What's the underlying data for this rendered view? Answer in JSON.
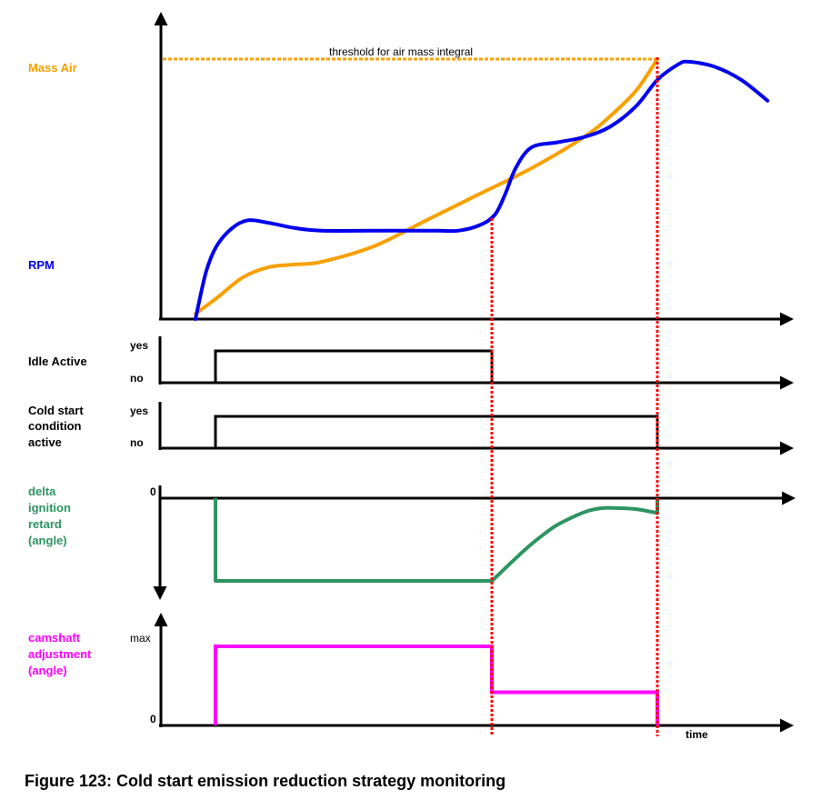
{
  "colors": {
    "mass_air": "#f7a000",
    "rpm": "#0000ee",
    "ignition": "#2e9462",
    "camshaft": "#ff00ff",
    "marker": "#ff0000",
    "axis": "#000000",
    "zero_label": "#0000ee"
  },
  "caption": "Figure 123: Cold start emission reduction strategy monitoring",
  "chart_data": [
    {
      "type": "line",
      "panel": "top",
      "title": "",
      "xlabel": "",
      "ylabel": "",
      "grid": false,
      "x_range": [
        0,
        100
      ],
      "y_range": [
        0,
        100
      ],
      "series": [
        {
          "name": "Mass Air",
          "label": "Mass Air",
          "x": [
            6,
            10,
            15,
            20,
            25,
            30,
            40,
            50,
            60,
            70,
            80,
            85,
            90,
            94
          ],
          "values": [
            2,
            8,
            16,
            20,
            21,
            22,
            28,
            38,
            48,
            58,
            70,
            78,
            88,
            100
          ]
        },
        {
          "name": "RPM",
          "label": "RPM",
          "x": [
            6,
            8,
            10,
            13,
            16,
            20,
            25,
            30,
            40,
            52,
            56,
            60,
            63,
            65,
            67,
            70,
            75,
            80,
            85,
            90,
            94,
            98,
            100,
            105,
            110,
            115
          ],
          "values": [
            0,
            18,
            28,
            35,
            38,
            37,
            35,
            34,
            34,
            34,
            34,
            36,
            40,
            48,
            58,
            66,
            68,
            70,
            74,
            82,
            92,
            98,
            99,
            97,
            92,
            84
          ]
        }
      ],
      "threshold": {
        "label": "threshold for air mass integral",
        "value": 100
      },
      "markers_x": [
        52,
        94
      ]
    },
    {
      "type": "line",
      "panel": "idle",
      "label": "Idle Active",
      "tick_labels": [
        "yes",
        "no"
      ],
      "series": [
        {
          "name": "Idle Active",
          "steps": [
            [
              0,
              "no"
            ],
            [
              8,
              "yes"
            ],
            [
              52,
              "no"
            ]
          ]
        }
      ]
    },
    {
      "type": "line",
      "panel": "coldstart",
      "label": [
        "Cold start",
        "condition",
        "active"
      ],
      "tick_labels": [
        "yes",
        "no"
      ],
      "series": [
        {
          "name": "Cold start condition active",
          "steps": [
            [
              0,
              "no"
            ],
            [
              8,
              "yes"
            ],
            [
              94,
              "no"
            ]
          ]
        }
      ]
    },
    {
      "type": "line",
      "panel": "ignition",
      "label": [
        "delta",
        "ignition",
        "retard",
        "(angle)"
      ],
      "tick_labels": [
        "0"
      ],
      "series": [
        {
          "name": "delta ignition retard (angle)",
          "x": [
            8,
            8,
            52,
            56,
            60,
            64,
            68,
            72,
            76,
            80,
            84,
            88,
            92,
            94,
            94
          ],
          "values": [
            0,
            -100,
            -100,
            -82,
            -64,
            -48,
            -34,
            -24,
            -16,
            -12,
            -12,
            -13,
            -16,
            -18,
            0
          ]
        }
      ]
    },
    {
      "type": "line",
      "panel": "camshaft",
      "label": [
        "camshaft",
        "adjustment",
        "(angle)"
      ],
      "tick_labels": [
        "max",
        "0"
      ],
      "xlabel": "time",
      "series": [
        {
          "name": "camshaft adjustment (angle)",
          "steps": [
            [
              0,
              0
            ],
            [
              8,
              100
            ],
            [
              52,
              42
            ],
            [
              94,
              0
            ]
          ]
        }
      ]
    }
  ]
}
